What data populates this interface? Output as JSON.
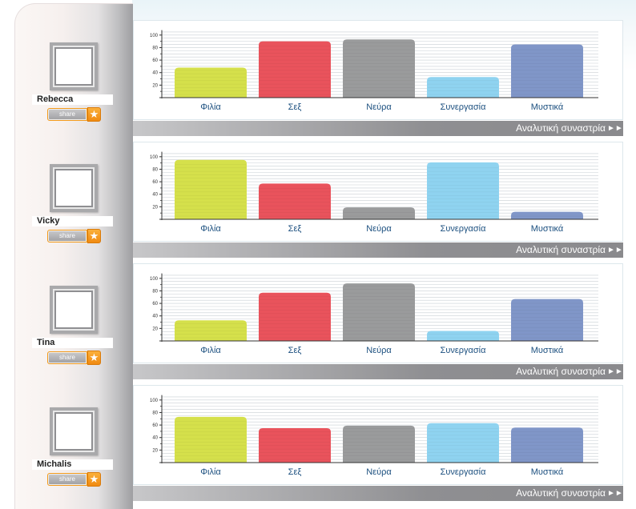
{
  "detail_link_label": "Αναλυτική συναστρία",
  "share_label": "share",
  "icons": {
    "share_star": "star-icon",
    "detail_arrow": "double-arrow-right-icon"
  },
  "colors": {
    "Φιλία": "#d5e04b",
    "Σεξ": "#e9535c",
    "Νεύρα": "#9a9b9c",
    "Συνεργασία": "#8fd3f0",
    "Μυστικά": "#8096c8",
    "category_label": "#1b4f7f",
    "detail_bar": "#8f8f92"
  },
  "profiles": [
    {
      "name": "Rebecca"
    },
    {
      "name": "Vicky"
    },
    {
      "name": "Tina"
    },
    {
      "name": "Michalis"
    }
  ],
  "chart_data": [
    {
      "type": "bar",
      "categories": [
        "Φιλία",
        "Σεξ",
        "Νεύρα",
        "Συνεργασία",
        "Μυστικά"
      ],
      "values": [
        48,
        90,
        93,
        33,
        85
      ],
      "yticks": [
        20,
        40,
        60,
        80,
        100
      ],
      "ylim": [
        0,
        110
      ],
      "grid": true
    },
    {
      "type": "bar",
      "categories": [
        "Φιλία",
        "Σεξ",
        "Νεύρα",
        "Συνεργασία",
        "Μυστικά"
      ],
      "values": [
        95,
        57,
        19,
        91,
        12
      ],
      "yticks": [
        20,
        40,
        60,
        80,
        100
      ],
      "ylim": [
        0,
        110
      ],
      "grid": true
    },
    {
      "type": "bar",
      "categories": [
        "Φιλία",
        "Σεξ",
        "Νεύρα",
        "Συνεργασία",
        "Μυστικά"
      ],
      "values": [
        33,
        77,
        92,
        16,
        67
      ],
      "yticks": [
        20,
        40,
        60,
        80,
        100
      ],
      "ylim": [
        0,
        110
      ],
      "grid": true
    },
    {
      "type": "bar",
      "categories": [
        "Φιλία",
        "Σεξ",
        "Νεύρα",
        "Συνεργασία",
        "Μυστικά"
      ],
      "values": [
        73,
        55,
        59,
        63,
        56
      ],
      "yticks": [
        20,
        40,
        60,
        80,
        100
      ],
      "ylim": [
        0,
        110
      ],
      "grid": true
    }
  ]
}
